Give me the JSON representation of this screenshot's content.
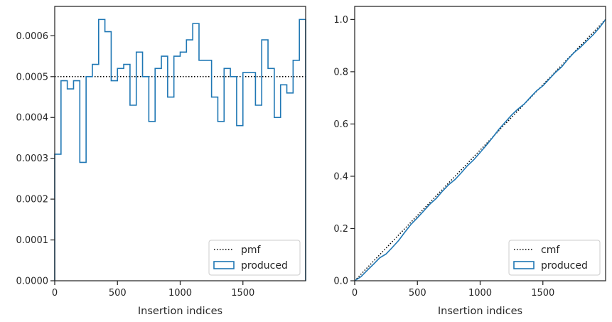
{
  "chart_data": [
    {
      "type": "line",
      "xlabel": "Insertion indices",
      "ylabel": "",
      "xlim": [
        0,
        2000
      ],
      "ylim": [
        0,
        0.000672
      ],
      "x_ticks": [
        0,
        500,
        1000,
        1500
      ],
      "x_tick_labels": [
        "0",
        "500",
        "1000",
        "1500"
      ],
      "y_ticks": [
        0,
        0.0001,
        0.0002,
        0.0003,
        0.0004,
        0.0005,
        0.0006
      ],
      "y_tick_labels": [
        "0.0000",
        "0.0001",
        "0.0002",
        "0.0003",
        "0.0004",
        "0.0005",
        "0.0006"
      ],
      "grid": false,
      "legend_position": "lower-right",
      "bin_width": 50,
      "series": [
        {
          "name": "pmf",
          "style": "dotted",
          "color": "#000000",
          "x": [
            0,
            2000
          ],
          "y": [
            0.0005,
            0.0005
          ]
        },
        {
          "name": "produced",
          "style": "step-histogram",
          "color": "#1f77b4",
          "bin_edges": [
            0,
            50,
            100,
            150,
            200,
            250,
            300,
            350,
            400,
            450,
            500,
            550,
            600,
            650,
            700,
            750,
            800,
            850,
            900,
            950,
            1000,
            1050,
            1100,
            1150,
            1200,
            1250,
            1300,
            1350,
            1400,
            1450,
            1500,
            1550,
            1600,
            1650,
            1700,
            1750,
            1800,
            1850,
            1900,
            1950,
            2000
          ],
          "values": [
            0.00031,
            0.00049,
            0.00047,
            0.00049,
            0.00029,
            0.0005,
            0.00053,
            0.00064,
            0.00061,
            0.00049,
            0.00052,
            0.00053,
            0.00043,
            0.00056,
            0.0005,
            0.00039,
            0.00052,
            0.00055,
            0.00045,
            0.00055,
            0.00056,
            0.00059,
            0.00063,
            0.00054,
            0.00054,
            0.00045,
            0.00039,
            0.00052,
            0.0005,
            0.00038,
            0.00051,
            0.00051,
            0.00043,
            0.00059,
            0.00052,
            0.0004,
            0.00048,
            0.00046,
            0.00054,
            0.00064
          ]
        }
      ]
    },
    {
      "type": "line",
      "xlabel": "Insertion indices",
      "ylabel": "",
      "xlim": [
        0,
        2000
      ],
      "ylim": [
        0,
        1.05
      ],
      "x_ticks": [
        0,
        500,
        1000,
        1500
      ],
      "x_tick_labels": [
        "0",
        "500",
        "1000",
        "1500"
      ],
      "y_ticks": [
        0,
        0.2,
        0.4,
        0.6,
        0.8,
        1.0
      ],
      "y_tick_labels": [
        "0.0",
        "0.2",
        "0.4",
        "0.6",
        "0.8",
        "1.0"
      ],
      "grid": false,
      "legend_position": "lower-right",
      "series": [
        {
          "name": "cmf",
          "style": "dotted",
          "color": "#000000",
          "x": [
            0,
            2000
          ],
          "y": [
            0,
            1.0
          ]
        },
        {
          "name": "produced",
          "style": "solid",
          "color": "#1f77b4",
          "x": [
            0,
            50,
            100,
            150,
            200,
            250,
            300,
            350,
            400,
            450,
            500,
            550,
            600,
            650,
            700,
            750,
            800,
            850,
            900,
            950,
            1000,
            1050,
            1100,
            1150,
            1200,
            1250,
            1300,
            1350,
            1400,
            1450,
            1500,
            1550,
            1600,
            1650,
            1700,
            1750,
            1800,
            1850,
            1900,
            1950,
            2000
          ],
          "y": [
            0,
            0.0155,
            0.04,
            0.0635,
            0.088,
            0.1025,
            0.1275,
            0.154,
            0.186,
            0.2165,
            0.241,
            0.267,
            0.2935,
            0.315,
            0.343,
            0.368,
            0.3875,
            0.4135,
            0.441,
            0.4635,
            0.491,
            0.519,
            0.5485,
            0.58,
            0.607,
            0.634,
            0.6565,
            0.676,
            0.702,
            0.727,
            0.746,
            0.7715,
            0.797,
            0.8185,
            0.848,
            0.874,
            0.894,
            0.918,
            0.941,
            0.968,
            1.0
          ]
        }
      ]
    }
  ]
}
